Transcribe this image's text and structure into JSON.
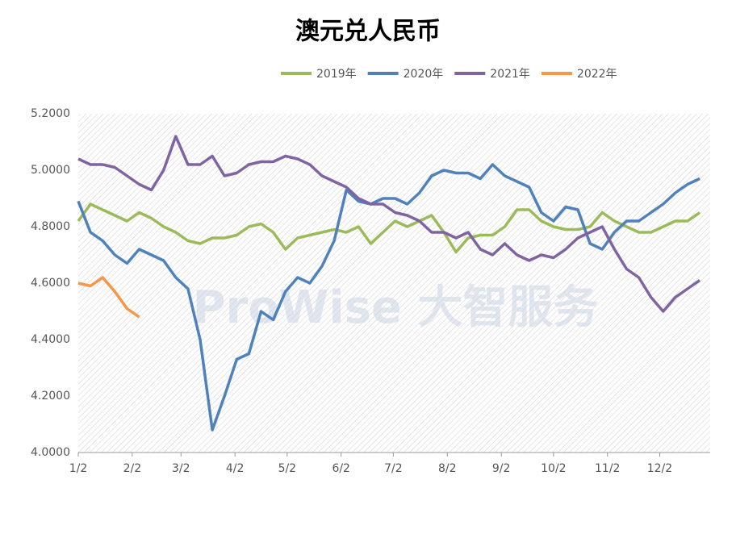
{
  "chart_data": {
    "type": "line",
    "title": "澳元兑人民币",
    "watermark": "ProWise 大智服务",
    "x": [
      0,
      7,
      14,
      21,
      28,
      35,
      42,
      49,
      56,
      63,
      70,
      77,
      84,
      91,
      98,
      105,
      112,
      119,
      126,
      133,
      140,
      147,
      154,
      161,
      168,
      175,
      182,
      189,
      196,
      203,
      210,
      217,
      224,
      231,
      238,
      245,
      252,
      259,
      266,
      273,
      280,
      287,
      294,
      301,
      308,
      315,
      322,
      329,
      336,
      343,
      350,
      357
    ],
    "xlim": [
      0,
      363
    ],
    "xticks": [
      {
        "value": 0,
        "label": "1/2"
      },
      {
        "value": 31,
        "label": "2/2"
      },
      {
        "value": 59,
        "label": "3/2"
      },
      {
        "value": 90,
        "label": "4/2"
      },
      {
        "value": 120,
        "label": "5/2"
      },
      {
        "value": 151,
        "label": "6/2"
      },
      {
        "value": 181,
        "label": "7/2"
      },
      {
        "value": 212,
        "label": "8/2"
      },
      {
        "value": 243,
        "label": "9/2"
      },
      {
        "value": 273,
        "label": "10/2"
      },
      {
        "value": 304,
        "label": "11/2"
      },
      {
        "value": 334,
        "label": "12/2"
      }
    ],
    "ylim": [
      4.0,
      5.2
    ],
    "yticks": [
      {
        "value": 4.0,
        "label": "4.0000"
      },
      {
        "value": 4.2,
        "label": "4.2000"
      },
      {
        "value": 4.4,
        "label": "4.4000"
      },
      {
        "value": 4.6,
        "label": "4.6000"
      },
      {
        "value": 4.8,
        "label": "4.8000"
      },
      {
        "value": 5.0,
        "label": "5.0000"
      },
      {
        "value": 5.2,
        "label": "5.2000"
      }
    ],
    "grid": false,
    "legend": "top",
    "series": [
      {
        "name": "2019年",
        "color": "#9bbb59",
        "values": [
          4.82,
          4.88,
          4.86,
          4.84,
          4.82,
          4.85,
          4.83,
          4.8,
          4.78,
          4.75,
          4.74,
          4.76,
          4.76,
          4.77,
          4.8,
          4.81,
          4.78,
          4.72,
          4.76,
          4.77,
          4.78,
          4.79,
          4.78,
          4.8,
          4.74,
          4.78,
          4.82,
          4.8,
          4.82,
          4.84,
          4.78,
          4.71,
          4.76,
          4.77,
          4.77,
          4.8,
          4.86,
          4.86,
          4.82,
          4.8,
          4.79,
          4.79,
          4.8,
          4.85,
          4.82,
          4.8,
          4.78,
          4.78,
          4.8,
          4.82,
          4.82,
          4.85
        ]
      },
      {
        "name": "2020年",
        "color": "#4f81bd",
        "values": [
          4.89,
          4.78,
          4.75,
          4.7,
          4.67,
          4.72,
          4.7,
          4.68,
          4.62,
          4.58,
          4.4,
          4.08,
          4.2,
          4.33,
          4.35,
          4.5,
          4.47,
          4.57,
          4.62,
          4.6,
          4.66,
          4.75,
          4.93,
          4.89,
          4.88,
          4.9,
          4.9,
          4.88,
          4.92,
          4.98,
          5.0,
          4.99,
          4.99,
          4.97,
          5.02,
          4.98,
          4.96,
          4.94,
          4.85,
          4.82,
          4.87,
          4.86,
          4.74,
          4.72,
          4.78,
          4.82,
          4.82,
          4.85,
          4.88,
          4.92,
          4.95,
          4.97
        ]
      },
      {
        "name": "2021年",
        "color": "#8064a2",
        "values": [
          5.04,
          5.02,
          5.02,
          5.01,
          4.98,
          4.95,
          4.93,
          5.0,
          5.12,
          5.02,
          5.02,
          5.05,
          4.98,
          4.99,
          5.02,
          5.03,
          5.03,
          5.05,
          5.04,
          5.02,
          4.98,
          4.96,
          4.94,
          4.9,
          4.88,
          4.88,
          4.85,
          4.84,
          4.82,
          4.78,
          4.78,
          4.76,
          4.78,
          4.72,
          4.7,
          4.74,
          4.7,
          4.68,
          4.7,
          4.69,
          4.72,
          4.76,
          4.78,
          4.8,
          4.72,
          4.65,
          4.62,
          4.55,
          4.5,
          4.55,
          4.58,
          4.61
        ]
      },
      {
        "name": "2022年",
        "color": "#f79646",
        "values": [
          4.6,
          4.59,
          4.62,
          4.57,
          4.51,
          4.48,
          null,
          null,
          null,
          null,
          null,
          null,
          null,
          null,
          null,
          null,
          null,
          null,
          null,
          null,
          null,
          null,
          null,
          null,
          null,
          null,
          null,
          null,
          null,
          null,
          null,
          null,
          null,
          null,
          null,
          null,
          null,
          null,
          null,
          null,
          null,
          null,
          null,
          null,
          null,
          null,
          null,
          null,
          null,
          null,
          null,
          null
        ]
      }
    ]
  }
}
